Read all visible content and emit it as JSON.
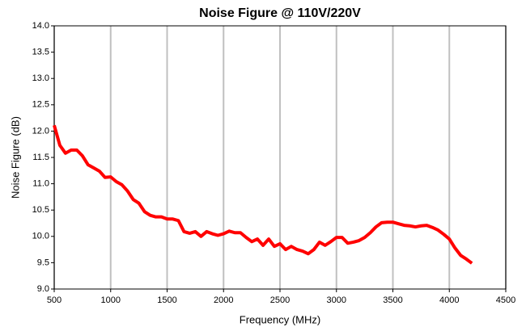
{
  "chart_data": {
    "type": "line",
    "title": "Noise Figure @ 110V/220V",
    "xlabel": "Frequency (MHz)",
    "ylabel": "Noise Figure (dB)",
    "x": [
      500,
      550,
      600,
      650,
      700,
      750,
      800,
      850,
      900,
      950,
      1000,
      1050,
      1100,
      1150,
      1200,
      1250,
      1300,
      1350,
      1400,
      1450,
      1500,
      1550,
      1600,
      1650,
      1700,
      1750,
      1800,
      1850,
      1900,
      1950,
      2000,
      2050,
      2100,
      2150,
      2200,
      2250,
      2300,
      2350,
      2400,
      2450,
      2500,
      2550,
      2600,
      2650,
      2700,
      2750,
      2800,
      2850,
      2900,
      2950,
      3000,
      3050,
      3100,
      3150,
      3200,
      3250,
      3300,
      3350,
      3400,
      3450,
      3500,
      3550,
      3600,
      3650,
      3700,
      3750,
      3800,
      3850,
      3900,
      3950,
      4000,
      4050,
      4100,
      4150,
      4200
    ],
    "values": [
      12.11,
      11.73,
      11.58,
      11.64,
      11.64,
      11.53,
      11.36,
      11.3,
      11.24,
      11.12,
      11.13,
      11.04,
      10.98,
      10.86,
      10.7,
      10.63,
      10.47,
      10.4,
      10.37,
      10.37,
      10.33,
      10.33,
      10.3,
      10.09,
      10.06,
      10.09,
      10.0,
      10.09,
      10.05,
      10.02,
      10.05,
      10.1,
      10.07,
      10.07,
      9.98,
      9.9,
      9.95,
      9.83,
      9.95,
      9.81,
      9.86,
      9.75,
      9.81,
      9.75,
      9.72,
      9.67,
      9.75,
      9.89,
      9.83,
      9.9,
      9.98,
      9.98,
      9.87,
      9.89,
      9.92,
      9.98,
      10.07,
      10.18,
      10.26,
      10.27,
      10.27,
      10.24,
      10.21,
      10.2,
      10.18,
      10.2,
      10.21,
      10.17,
      10.12,
      10.04,
      9.95,
      9.78,
      9.64,
      9.57,
      9.49
    ],
    "color": "#ff0000",
    "xlim": [
      500,
      4500
    ],
    "xticks": [
      500,
      1000,
      1500,
      2000,
      2500,
      3000,
      3500,
      4000,
      4500
    ],
    "ylim": [
      9,
      14
    ],
    "yticks": [
      {
        "value": 9,
        "label": "9.0"
      },
      {
        "value": 9.5,
        "label": "9.5"
      },
      {
        "value": 10,
        "label": "10.0"
      },
      {
        "value": 10.5,
        "label": "10.5"
      },
      {
        "value": 11,
        "label": "11.0"
      },
      {
        "value": 11.5,
        "label": "11.5"
      },
      {
        "value": 12,
        "label": "12.0"
      },
      {
        "value": 12.5,
        "label": "12.5"
      },
      {
        "value": 13,
        "label": "13.0"
      },
      {
        "value": 13.5,
        "label": "13.5"
      },
      {
        "value": 14,
        "label": "14.0"
      }
    ],
    "grid": "x"
  }
}
